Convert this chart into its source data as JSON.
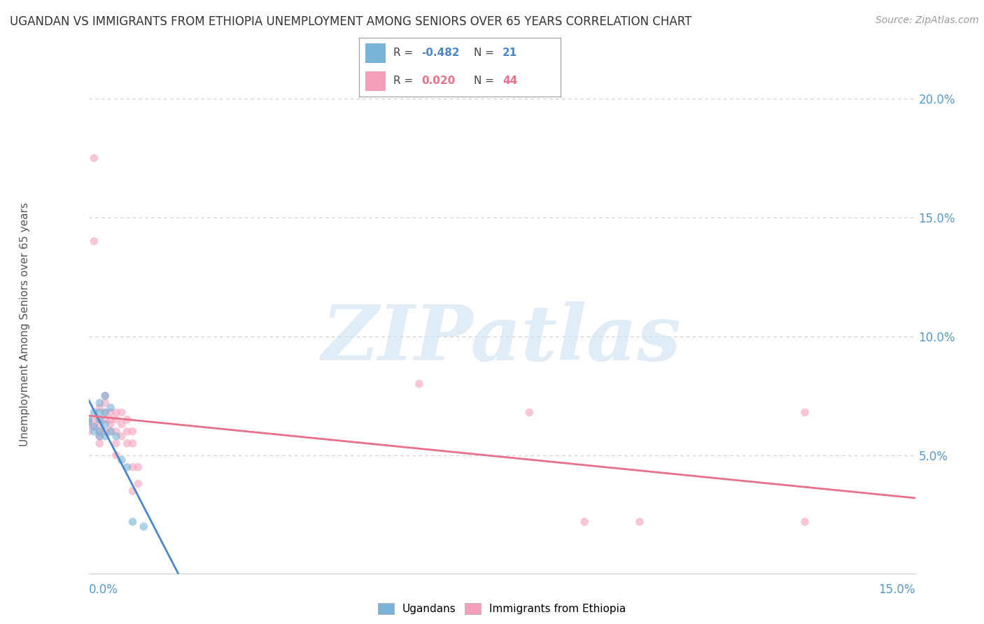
{
  "title": "UGANDAN VS IMMIGRANTS FROM ETHIOPIA UNEMPLOYMENT AMONG SENIORS OVER 65 YEARS CORRELATION CHART",
  "source": "Source: ZipAtlas.com",
  "ylabel": "Unemployment Among Seniors over 65 years",
  "xmin": 0.0,
  "xmax": 0.15,
  "ymin": 0.0,
  "ymax": 0.21,
  "ugandan_color": "#7ab3d8",
  "ethiopia_color": "#f5a0bb",
  "ugandan_line_color": "#4a86c8",
  "ethiopia_line_color": "#e8708a",
  "corr_box": {
    "ugandan_R": -0.482,
    "ugandan_N": 21,
    "ethiopia_R": 0.02,
    "ethiopia_N": 44,
    "ugandan_patch": "#7ab3d8",
    "ethiopia_patch": "#f5a0bb",
    "R_color_ugandan": "#4a86c8",
    "R_color_ethiopia": "#e8708a",
    "N_color_ugandan": "#4a86c8",
    "N_color_ethiopia": "#e8708a"
  },
  "ugandan_scatter": [
    [
      0.0,
      0.065
    ],
    [
      0.0,
      0.064
    ],
    [
      0.001,
      0.068
    ],
    [
      0.001,
      0.062
    ],
    [
      0.001,
      0.06
    ],
    [
      0.002,
      0.072
    ],
    [
      0.002,
      0.068
    ],
    [
      0.002,
      0.065
    ],
    [
      0.002,
      0.06
    ],
    [
      0.002,
      0.058
    ],
    [
      0.003,
      0.075
    ],
    [
      0.003,
      0.068
    ],
    [
      0.003,
      0.063
    ],
    [
      0.003,
      0.058
    ],
    [
      0.004,
      0.07
    ],
    [
      0.004,
      0.06
    ],
    [
      0.005,
      0.058
    ],
    [
      0.006,
      0.048
    ],
    [
      0.007,
      0.045
    ],
    [
      0.008,
      0.022
    ],
    [
      0.01,
      0.02
    ]
  ],
  "ethiopia_scatter": [
    [
      0.0,
      0.063
    ],
    [
      0.0,
      0.06
    ],
    [
      0.001,
      0.175
    ],
    [
      0.001,
      0.14
    ],
    [
      0.001,
      0.065
    ],
    [
      0.001,
      0.062
    ],
    [
      0.002,
      0.07
    ],
    [
      0.002,
      0.065
    ],
    [
      0.002,
      0.063
    ],
    [
      0.002,
      0.06
    ],
    [
      0.002,
      0.058
    ],
    [
      0.002,
      0.055
    ],
    [
      0.003,
      0.075
    ],
    [
      0.003,
      0.072
    ],
    [
      0.003,
      0.068
    ],
    [
      0.003,
      0.065
    ],
    [
      0.003,
      0.06
    ],
    [
      0.004,
      0.068
    ],
    [
      0.004,
      0.065
    ],
    [
      0.004,
      0.063
    ],
    [
      0.004,
      0.06
    ],
    [
      0.005,
      0.068
    ],
    [
      0.005,
      0.065
    ],
    [
      0.005,
      0.06
    ],
    [
      0.005,
      0.055
    ],
    [
      0.005,
      0.05
    ],
    [
      0.006,
      0.068
    ],
    [
      0.006,
      0.063
    ],
    [
      0.006,
      0.058
    ],
    [
      0.007,
      0.065
    ],
    [
      0.007,
      0.06
    ],
    [
      0.007,
      0.055
    ],
    [
      0.008,
      0.06
    ],
    [
      0.008,
      0.055
    ],
    [
      0.008,
      0.045
    ],
    [
      0.008,
      0.035
    ],
    [
      0.009,
      0.045
    ],
    [
      0.009,
      0.038
    ],
    [
      0.06,
      0.08
    ],
    [
      0.08,
      0.068
    ],
    [
      0.09,
      0.022
    ],
    [
      0.1,
      0.022
    ],
    [
      0.13,
      0.022
    ],
    [
      0.13,
      0.068
    ]
  ],
  "bg_color": "#ffffff",
  "scatter_alpha": 0.6,
  "scatter_size": 70,
  "grid_color": "#cccccc",
  "watermark_text": "ZIPatlas",
  "watermark_fontsize": 80
}
